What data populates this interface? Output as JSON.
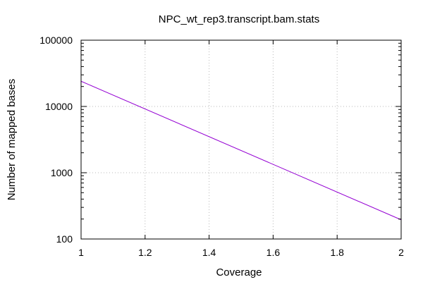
{
  "chart_data": {
    "type": "line",
    "title": "NPC_wt_rep3.transcript.bam.stats",
    "xlabel": "Coverage",
    "ylabel": "Number of mapped bases",
    "xlim": [
      1,
      2
    ],
    "ylim": [
      100,
      100000
    ],
    "yscale": "log",
    "grid": true,
    "legend": "none",
    "x_ticks": [
      1,
      1.2,
      1.4,
      1.6,
      1.8,
      2
    ],
    "x_tick_labels": [
      "1",
      "1.2",
      "1.4",
      "1.6",
      "1.8",
      "2"
    ],
    "y_ticks": [
      100,
      1000,
      10000,
      100000
    ],
    "y_tick_labels": [
      "100",
      "1000",
      "10000",
      "100000"
    ],
    "series": [
      {
        "color": "#9400d3",
        "x": [
          1,
          2
        ],
        "y": [
          24000,
          195
        ]
      }
    ]
  }
}
